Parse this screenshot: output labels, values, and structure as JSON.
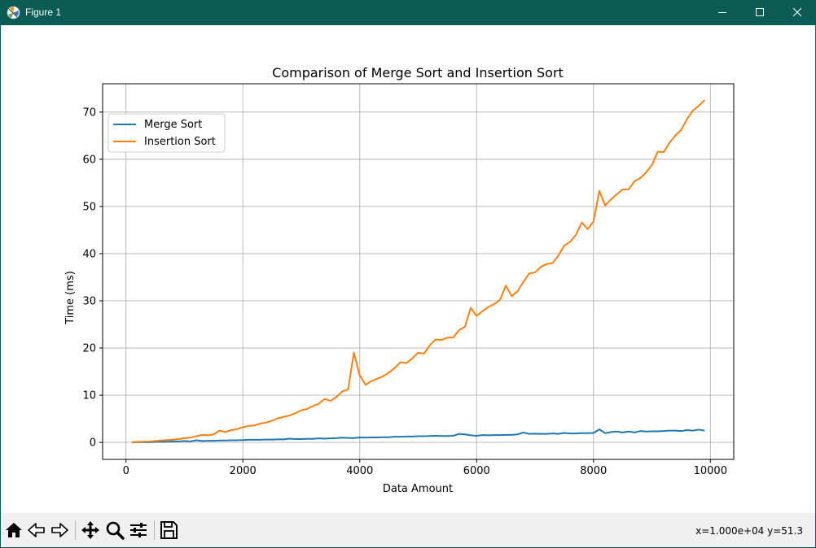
{
  "window": {
    "title": "Figure 1"
  },
  "toolbar": {
    "buttons": [
      {
        "name": "home-icon"
      },
      {
        "name": "back-arrow-icon"
      },
      {
        "name": "forward-arrow-icon"
      },
      {
        "name": "pan-icon"
      },
      {
        "name": "zoom-icon"
      },
      {
        "name": "configure-subplots-icon"
      },
      {
        "name": "save-icon"
      }
    ],
    "coords": "x=1.000e+04 y=51.3"
  },
  "colors": {
    "titlebar": "#0a5c55",
    "merge": "#1f77b4",
    "insertion": "#ff7f0e",
    "grid": "#b0b0b0"
  },
  "chart_data": {
    "type": "line",
    "title": "Comparison of Merge Sort and Insertion Sort",
    "xlabel": "Data Amount",
    "ylabel": "Time (ms)",
    "xlim": [
      -400,
      10400
    ],
    "ylim": [
      -3.6,
      76.0
    ],
    "xticks": [
      0,
      2000,
      4000,
      6000,
      8000,
      10000
    ],
    "yticks": [
      0,
      10,
      20,
      30,
      40,
      50,
      60,
      70
    ],
    "grid": true,
    "legend_position": "upper left",
    "x": [
      100,
      200,
      300,
      400,
      500,
      600,
      700,
      800,
      900,
      1000,
      1100,
      1200,
      1300,
      1400,
      1500,
      1600,
      1700,
      1800,
      1900,
      2000,
      2100,
      2200,
      2300,
      2400,
      2500,
      2600,
      2700,
      2800,
      2900,
      3000,
      3100,
      3200,
      3300,
      3400,
      3500,
      3600,
      3700,
      3800,
      3900,
      4000,
      4100,
      4200,
      4300,
      4400,
      4500,
      4600,
      4700,
      4800,
      4900,
      5000,
      5100,
      5200,
      5300,
      5400,
      5500,
      5600,
      5700,
      5800,
      5900,
      6000,
      6100,
      6200,
      6300,
      6400,
      6500,
      6600,
      6700,
      6800,
      6900,
      7000,
      7100,
      7200,
      7300,
      7400,
      7500,
      7600,
      7700,
      7800,
      7900,
      8000,
      8100,
      8200,
      8300,
      8400,
      8500,
      8600,
      8700,
      8800,
      8900,
      9000,
      9100,
      9200,
      9300,
      9400,
      9500,
      9600,
      9700,
      9800,
      9900
    ],
    "series": [
      {
        "name": "Merge Sort",
        "values": [
          0.0,
          0.05,
          0.05,
          0.05,
          0.1,
          0.1,
          0.15,
          0.2,
          0.2,
          0.3,
          0.2,
          0.45,
          0.3,
          0.35,
          0.35,
          0.4,
          0.4,
          0.45,
          0.45,
          0.5,
          0.55,
          0.55,
          0.55,
          0.6,
          0.6,
          0.65,
          0.65,
          0.8,
          0.7,
          0.7,
          0.75,
          0.75,
          0.85,
          0.8,
          0.85,
          0.9,
          1.0,
          0.95,
          0.9,
          1.05,
          1.0,
          1.05,
          1.05,
          1.1,
          1.1,
          1.2,
          1.2,
          1.25,
          1.25,
          1.3,
          1.3,
          1.35,
          1.4,
          1.35,
          1.35,
          1.4,
          1.8,
          1.7,
          1.5,
          1.4,
          1.55,
          1.5,
          1.55,
          1.55,
          1.6,
          1.6,
          1.7,
          2.1,
          1.8,
          1.85,
          1.8,
          1.8,
          1.9,
          1.8,
          2.0,
          1.9,
          1.9,
          1.95,
          1.95,
          2.0,
          2.75,
          1.95,
          2.2,
          2.3,
          2.1,
          2.3,
          2.1,
          2.4,
          2.3,
          2.35,
          2.35,
          2.4,
          2.5,
          2.5,
          2.4,
          2.6,
          2.5,
          2.7,
          2.5
        ]
      },
      {
        "name": "Insertion Sort",
        "values": [
          0.05,
          0.1,
          0.15,
          0.2,
          0.3,
          0.4,
          0.5,
          0.55,
          0.7,
          0.9,
          1.0,
          1.3,
          1.6,
          1.5,
          1.7,
          2.5,
          2.2,
          2.6,
          2.8,
          3.2,
          3.5,
          3.6,
          4.0,
          4.2,
          4.6,
          5.1,
          5.4,
          5.7,
          6.2,
          6.8,
          7.1,
          7.7,
          8.2,
          9.2,
          8.8,
          9.6,
          10.8,
          11.2,
          19.0,
          14.2,
          12.2,
          13.0,
          13.5,
          14.0,
          14.8,
          15.8,
          17.0,
          16.8,
          17.8,
          19.0,
          18.8,
          20.6,
          21.8,
          21.7,
          22.2,
          22.2,
          23.8,
          24.5,
          28.5,
          26.8,
          27.8,
          28.7,
          29.3,
          30.2,
          33.2,
          31.0,
          32.0,
          34.0,
          35.8,
          36.0,
          37.2,
          37.8,
          38.0,
          39.6,
          41.7,
          42.5,
          44.0,
          46.6,
          45.2,
          46.8,
          53.3,
          50.2,
          51.5,
          52.6,
          53.6,
          53.6,
          55.3,
          56.0,
          57.2,
          58.8,
          61.6,
          61.5,
          63.5,
          65.0,
          66.2,
          68.5,
          70.3,
          71.3,
          72.5
        ]
      }
    ]
  }
}
